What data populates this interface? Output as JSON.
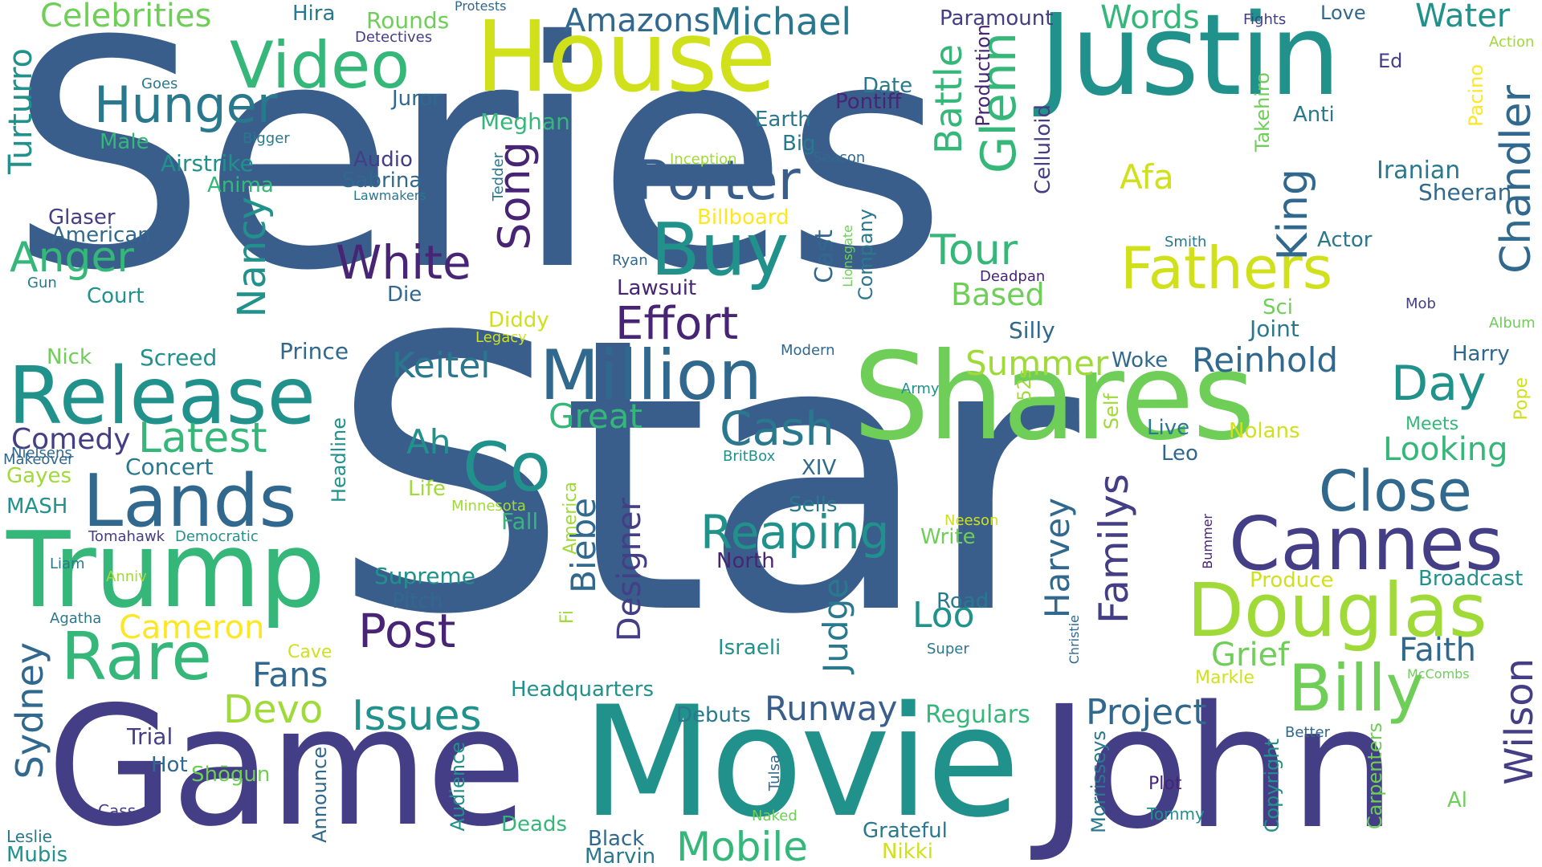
{
  "palette": {
    "p1": "#3a5e8c",
    "p2": "#433e85",
    "p3": "#482475",
    "p4": "#31688e",
    "p5": "#2a788e",
    "p6": "#21918c",
    "p7": "#1fa187",
    "p8": "#35b779",
    "p9": "#6ece58",
    "p10": "#a0da39",
    "p11": "#d0e11c",
    "p12": "#fde725"
  },
  "words": [
    "Series",
    "Star",
    "Game",
    "Movie",
    "John",
    "Justin",
    "House",
    "Shares",
    "Trump",
    "Lands",
    "Release",
    "Million",
    "Douglas",
    "Cannes",
    "Video",
    "Hunger",
    "Porter",
    "Buy",
    "Fathers",
    "Billy",
    "Close",
    "White",
    "Effort",
    "Co",
    "Rare",
    "Post",
    "Latest",
    "Anger",
    "Reaping",
    "Issues",
    "Mobile",
    "Celebrities",
    "Amazons",
    "Michael",
    "Water",
    "Words",
    "Glenn",
    "Battle",
    "Tour",
    "Song",
    "Nancy",
    "King",
    "Chandler",
    "Summer",
    "Reinhold",
    "Day",
    "Keitel",
    "Cash",
    "Great",
    "Ah",
    "Comedy",
    "Biebe",
    "Designer",
    "Familys",
    "Harvey",
    "Judge",
    "Loo",
    "Runway",
    "Project",
    "Wilson",
    "Faith",
    "Grief",
    "Looking",
    "Afa",
    "Based",
    "Devo",
    "Cameron",
    "Fans",
    "Sydney",
    "Turturro",
    "Rounds",
    "Paramount",
    "Hira",
    "Protests",
    "Detectives",
    "Fights",
    "Love",
    "Action",
    "Ed",
    "Pacino",
    "Takehiro",
    "Anti",
    "Iranian",
    "Sheeran",
    "Actor",
    "Smith",
    "Mob",
    "Album",
    "Harry",
    "Pope",
    "Meets",
    "Nolans",
    "Live",
    "Leo",
    "Woke",
    "Silly",
    "Joint",
    "Sci",
    "Self",
    "52s",
    "Army",
    "Modern",
    "Legacy",
    "Diddy",
    "Lawsuit",
    "Ryan",
    "Deadpan",
    "Cast",
    "Company",
    "Lionsgate",
    "Billboard",
    "Inception",
    "Season",
    "Big",
    "Earth",
    "Date",
    "Pontiff",
    "Production",
    "Celluloid",
    "Juror",
    "Meghan",
    "Goes",
    "Bigger",
    "Male",
    "Airstrike",
    "Anima",
    "Audio",
    "Sabrina",
    "Lawmakers",
    "Tedder",
    "Glaser",
    "American",
    "Gun",
    "Court",
    "Die",
    "Nick",
    "Screed",
    "Prince",
    "Headline",
    "Nielsens",
    "Makeover",
    "Concert",
    "Gayes",
    "MASH",
    "Life",
    "Minnesota",
    "Fall",
    "America",
    "Fi",
    "Tomahawk",
    "Democratic",
    "Liam",
    "Anniv",
    "Supreme",
    "Pitch",
    "Agatha",
    "Cave",
    "XIV",
    "BritBox",
    "North",
    "Sells",
    "Write",
    "Neeson",
    "Produce",
    "Broadcast",
    "Road",
    "Super",
    "Israeli",
    "Christie",
    "Markle",
    "McCombs",
    "Headquarters",
    "Debuts",
    "Regulars",
    "Bummer",
    "Better",
    "Carpenters",
    "Copyright",
    "Morrisseys",
    "Plot",
    "Tommy",
    "Al",
    "Trial",
    "Hot",
    "Shōgun",
    "Announce",
    "Audience",
    "Tulsa",
    "Naked",
    "Deads",
    "Black",
    "Marvin",
    "Grateful",
    "Nikki",
    "Cass",
    "Leslie",
    "Mubis"
  ]
}
